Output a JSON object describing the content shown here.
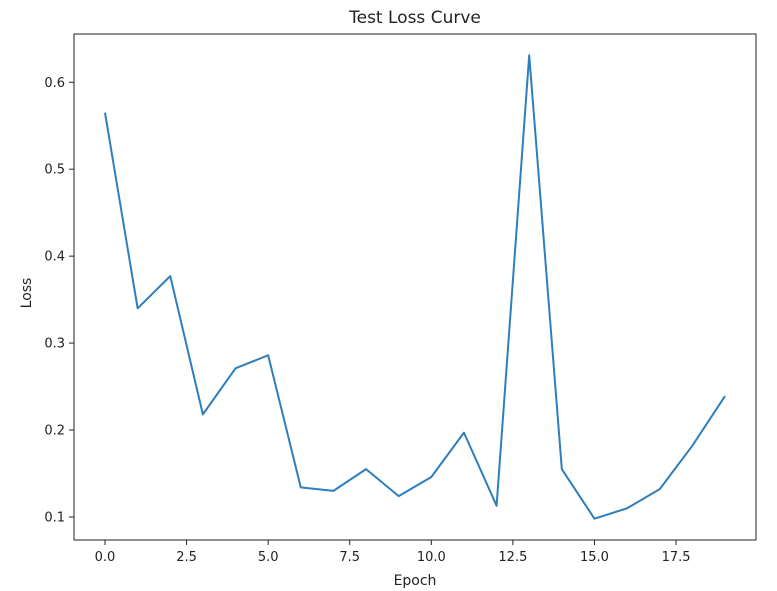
{
  "chart_data": {
    "type": "line",
    "title": "Test Loss Curve",
    "xlabel": "Epoch",
    "ylabel": "Loss",
    "xlim": [
      -0.95,
      19.95
    ],
    "ylim": [
      0.0735,
      0.6555
    ],
    "xticks": [
      0.0,
      2.5,
      5.0,
      7.5,
      10.0,
      12.5,
      15.0,
      17.5
    ],
    "xtick_labels": [
      "0.0",
      "2.5",
      "5.0",
      "7.5",
      "10.0",
      "12.5",
      "15.0",
      "17.5"
    ],
    "yticks": [
      0.1,
      0.2,
      0.3,
      0.4,
      0.5,
      0.6
    ],
    "ytick_labels": [
      "0.1",
      "0.2",
      "0.3",
      "0.4",
      "0.5",
      "0.6"
    ],
    "grid": false,
    "line_color": "#2e7ebc",
    "series": [
      {
        "x": [
          0,
          1,
          2,
          3,
          4,
          5,
          6,
          7,
          8,
          9,
          10,
          11,
          12,
          13,
          14,
          15,
          16,
          17,
          18,
          19
        ],
        "y": [
          0.565,
          0.34,
          0.377,
          0.218,
          0.271,
          0.286,
          0.134,
          0.13,
          0.155,
          0.124,
          0.146,
          0.197,
          0.113,
          0.631,
          0.155,
          0.098,
          0.11,
          0.132,
          0.182,
          0.239
        ]
      }
    ]
  }
}
